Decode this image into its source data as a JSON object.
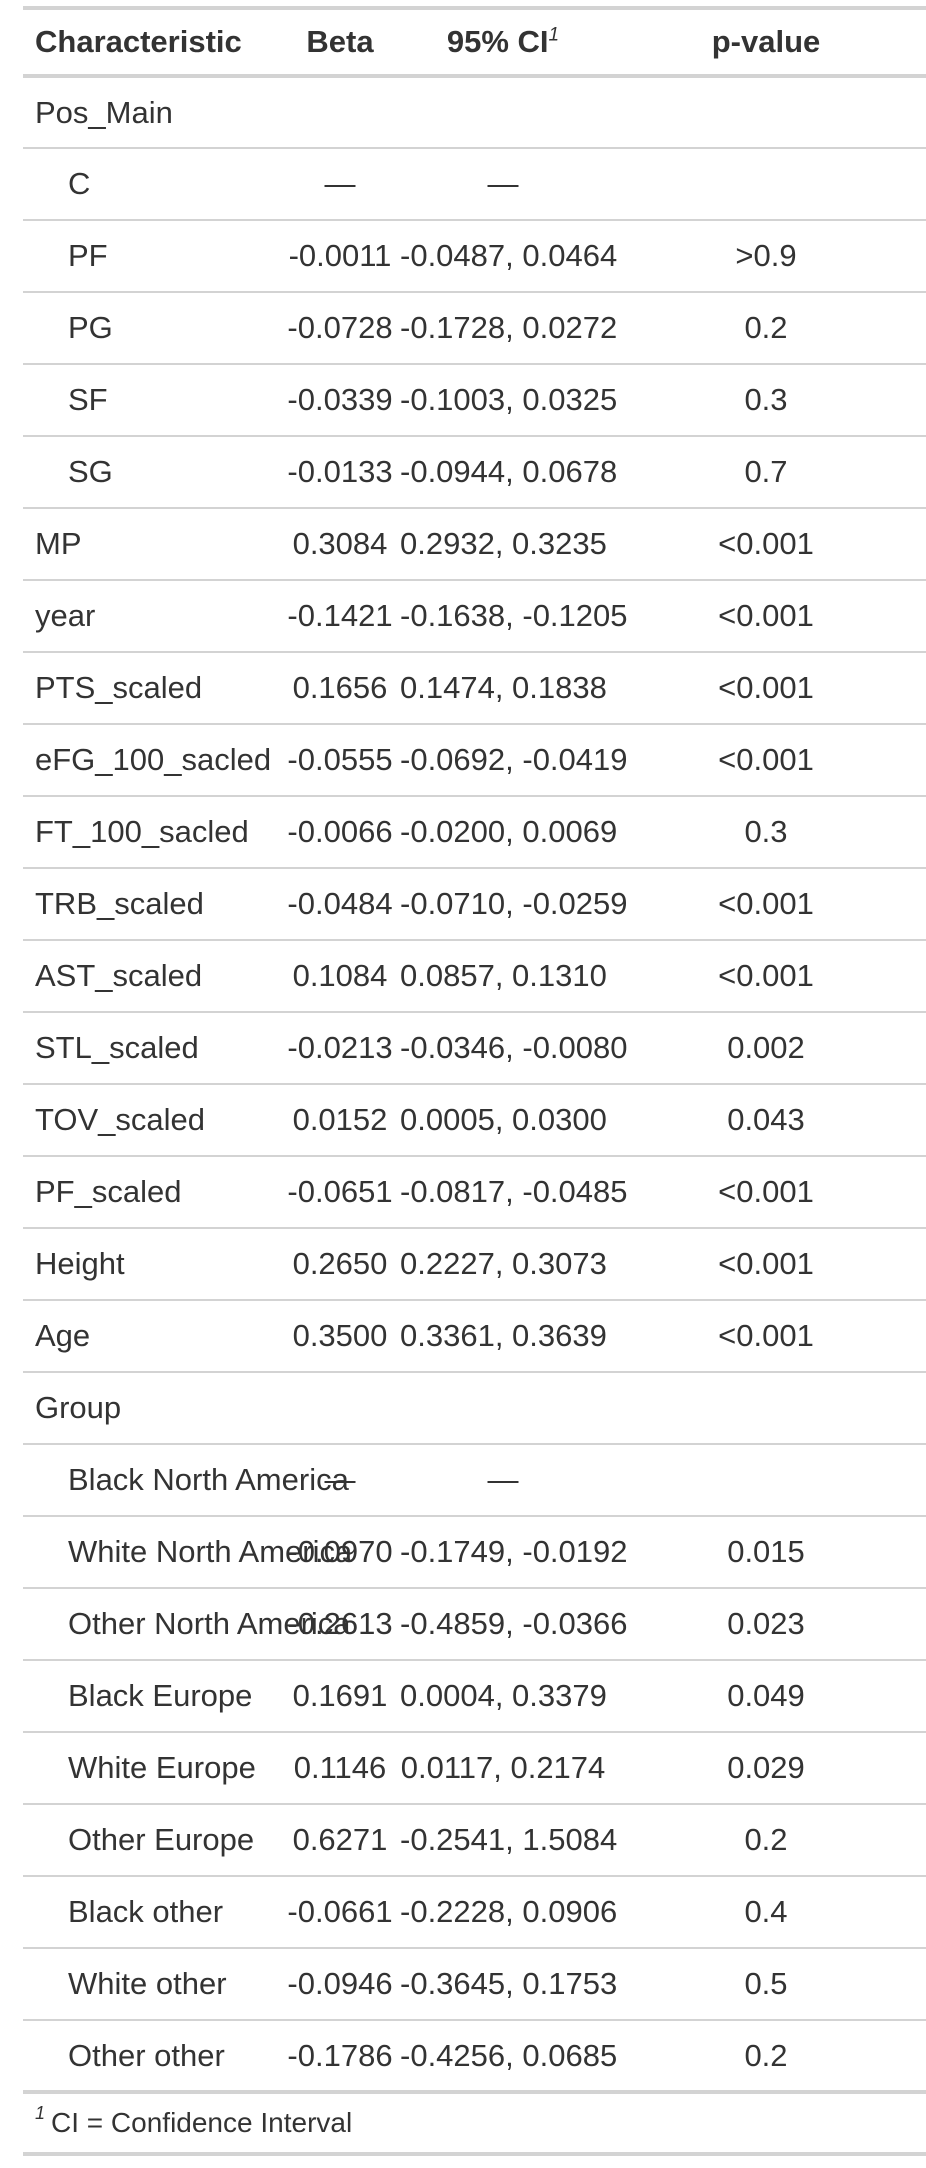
{
  "table": {
    "headers": {
      "characteristic": "Characteristic",
      "beta": "Beta",
      "ci": "95% CI",
      "ci_footnote_marker": "1",
      "pvalue": "p-value"
    },
    "rows": [
      {
        "label": "Pos_Main",
        "indent": false,
        "beta": "",
        "ci": "",
        "p": ""
      },
      {
        "label": "C",
        "indent": true,
        "beta": "—",
        "ci": "—",
        "p": ""
      },
      {
        "label": "PF",
        "indent": true,
        "beta": "-0.0011",
        "ci": "-0.0487, 0.0464",
        "p": ">0.9"
      },
      {
        "label": "PG",
        "indent": true,
        "beta": "-0.0728",
        "ci": "-0.1728, 0.0272",
        "p": "0.2"
      },
      {
        "label": "SF",
        "indent": true,
        "beta": "-0.0339",
        "ci": "-0.1003, 0.0325",
        "p": "0.3"
      },
      {
        "label": "SG",
        "indent": true,
        "beta": "-0.0133",
        "ci": "-0.0944, 0.0678",
        "p": "0.7"
      },
      {
        "label": "MP",
        "indent": false,
        "beta": "0.3084",
        "ci": "0.2932, 0.3235",
        "p": "<0.001"
      },
      {
        "label": "year",
        "indent": false,
        "beta": "-0.1421",
        "ci": "-0.1638, -0.1205",
        "p": "<0.001"
      },
      {
        "label": "PTS_scaled",
        "indent": false,
        "beta": "0.1656",
        "ci": "0.1474, 0.1838",
        "p": "<0.001"
      },
      {
        "label": "eFG_100_sacled",
        "indent": false,
        "beta": "-0.0555",
        "ci": "-0.0692, -0.0419",
        "p": "<0.001"
      },
      {
        "label": "FT_100_sacled",
        "indent": false,
        "beta": "-0.0066",
        "ci": "-0.0200, 0.0069",
        "p": "0.3"
      },
      {
        "label": "TRB_scaled",
        "indent": false,
        "beta": "-0.0484",
        "ci": "-0.0710, -0.0259",
        "p": "<0.001"
      },
      {
        "label": "AST_scaled",
        "indent": false,
        "beta": "0.1084",
        "ci": "0.0857, 0.1310",
        "p": "<0.001"
      },
      {
        "label": "STL_scaled",
        "indent": false,
        "beta": "-0.0213",
        "ci": "-0.0346, -0.0080",
        "p": "0.002"
      },
      {
        "label": "TOV_scaled",
        "indent": false,
        "beta": "0.0152",
        "ci": "0.0005, 0.0300",
        "p": "0.043"
      },
      {
        "label": "PF_scaled",
        "indent": false,
        "beta": "-0.0651",
        "ci": "-0.0817, -0.0485",
        "p": "<0.001"
      },
      {
        "label": "Height",
        "indent": false,
        "beta": "0.2650",
        "ci": "0.2227, 0.3073",
        "p": "<0.001"
      },
      {
        "label": "Age",
        "indent": false,
        "beta": "0.3500",
        "ci": "0.3361, 0.3639",
        "p": "<0.001"
      },
      {
        "label": "Group",
        "indent": false,
        "beta": "",
        "ci": "",
        "p": ""
      },
      {
        "label": "Black North America",
        "indent": true,
        "beta": "—",
        "ci": "—",
        "p": ""
      },
      {
        "label": "White North America",
        "indent": true,
        "beta": "-0.0970",
        "ci": "-0.1749, -0.0192",
        "p": "0.015"
      },
      {
        "label": "Other North America",
        "indent": true,
        "beta": "-0.2613",
        "ci": "-0.4859, -0.0366",
        "p": "0.023"
      },
      {
        "label": "Black Europe",
        "indent": true,
        "beta": "0.1691",
        "ci": "0.0004, 0.3379",
        "p": "0.049"
      },
      {
        "label": "White Europe",
        "indent": true,
        "beta": "0.1146",
        "ci": "0.0117, 0.2174",
        "p": "0.029"
      },
      {
        "label": "Other Europe",
        "indent": true,
        "beta": "0.6271",
        "ci": "-0.2541, 1.5084",
        "p": "0.2"
      },
      {
        "label": "Black other",
        "indent": true,
        "beta": "-0.0661",
        "ci": "-0.2228, 0.0906",
        "p": "0.4"
      },
      {
        "label": "White other",
        "indent": true,
        "beta": "-0.0946",
        "ci": "-0.3645, 0.1753",
        "p": "0.5"
      },
      {
        "label": "Other other",
        "indent": true,
        "beta": "-0.1786",
        "ci": "-0.4256, 0.0685",
        "p": "0.2"
      }
    ],
    "footnote": {
      "marker": "1",
      "text": "CI = Confidence Interval"
    }
  }
}
